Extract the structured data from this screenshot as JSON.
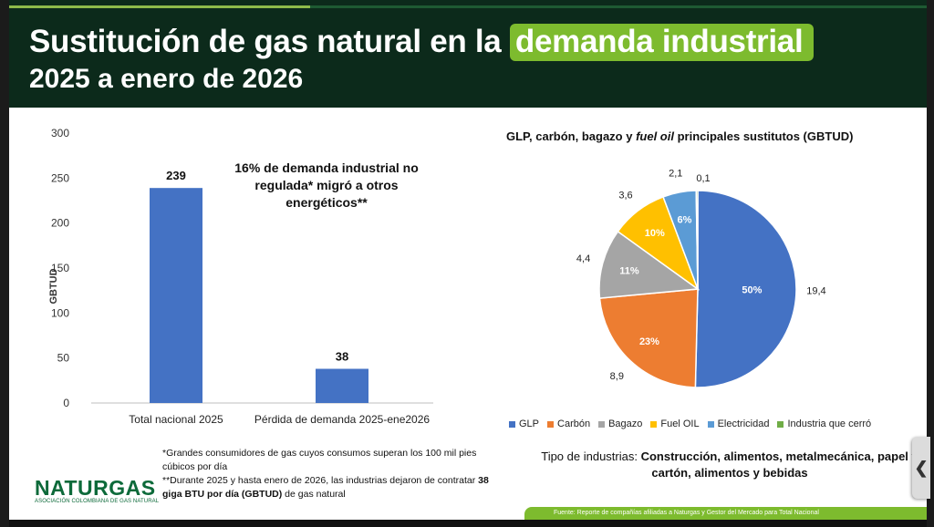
{
  "header": {
    "title_main": "Sustitución de gas natural en la ",
    "title_highlight": "demanda industrial",
    "title_line2": "2025 a enero de 2026"
  },
  "chart_data": [
    {
      "type": "bar",
      "categories": [
        "Total nacional 2025",
        "Pérdida de demanda 2025-ene2026"
      ],
      "values": [
        239,
        38
      ],
      "data_labels": [
        "239",
        "38"
      ],
      "ylabel": "GBTUD",
      "ylim": [
        0,
        300
      ],
      "yticks": [
        0,
        50,
        100,
        150,
        200,
        250,
        300
      ],
      "color": "#4472c4",
      "annotation": "16% de demanda industrial no regulada* migró a otros energéticos**"
    },
    {
      "type": "pie",
      "title_parts": [
        "GLP, carbón, bagazo y ",
        "fuel oil",
        " principales sustitutos  (GBTUD)"
      ],
      "labels": [
        "GLP",
        "Carbón",
        "Bagazo",
        "Fuel OIL",
        "Electricidad",
        "Industria que cerró"
      ],
      "values": [
        19.4,
        8.9,
        4.4,
        3.6,
        2.1,
        0.1
      ],
      "value_labels": [
        "19,4",
        "8,9",
        "4,4",
        "3,6",
        "2,1",
        "0,1"
      ],
      "percent_labels": [
        "50%",
        "23%",
        "11%",
        "10%",
        "6%",
        ""
      ],
      "colors": [
        "#4472c4",
        "#ed7d31",
        "#a5a5a5",
        "#ffc000",
        "#5b9bd5",
        "#70ad47"
      ],
      "legend_position": "bottom"
    }
  ],
  "tipo_industrias": {
    "prefix": "Tipo de industrias: ",
    "bold": "Construcción, alimentos, metalmecánica, papel y cartón, alimentos y bebidas"
  },
  "footnotes": {
    "note1": "*Grandes consumidores de gas cuyos consumos superan los 100 mil pies cúbicos por día",
    "note2_prefix": "**Durante 2025 y hasta enero de 2026, las industrias dejaron de contratar ",
    "note2_bold": "38 giga BTU por día (GBTUD)",
    "note2_suffix": " de gas natural"
  },
  "logo": {
    "name": "NATURGAS",
    "subtitle": "ASOCIACIÓN COLOMBIANA DE GAS NATURAL"
  },
  "source": "Fuente: Reporte de compañías afiliadas a Naturgas y Gestor del Mercado para Total Nacional",
  "side_handle": "❮"
}
